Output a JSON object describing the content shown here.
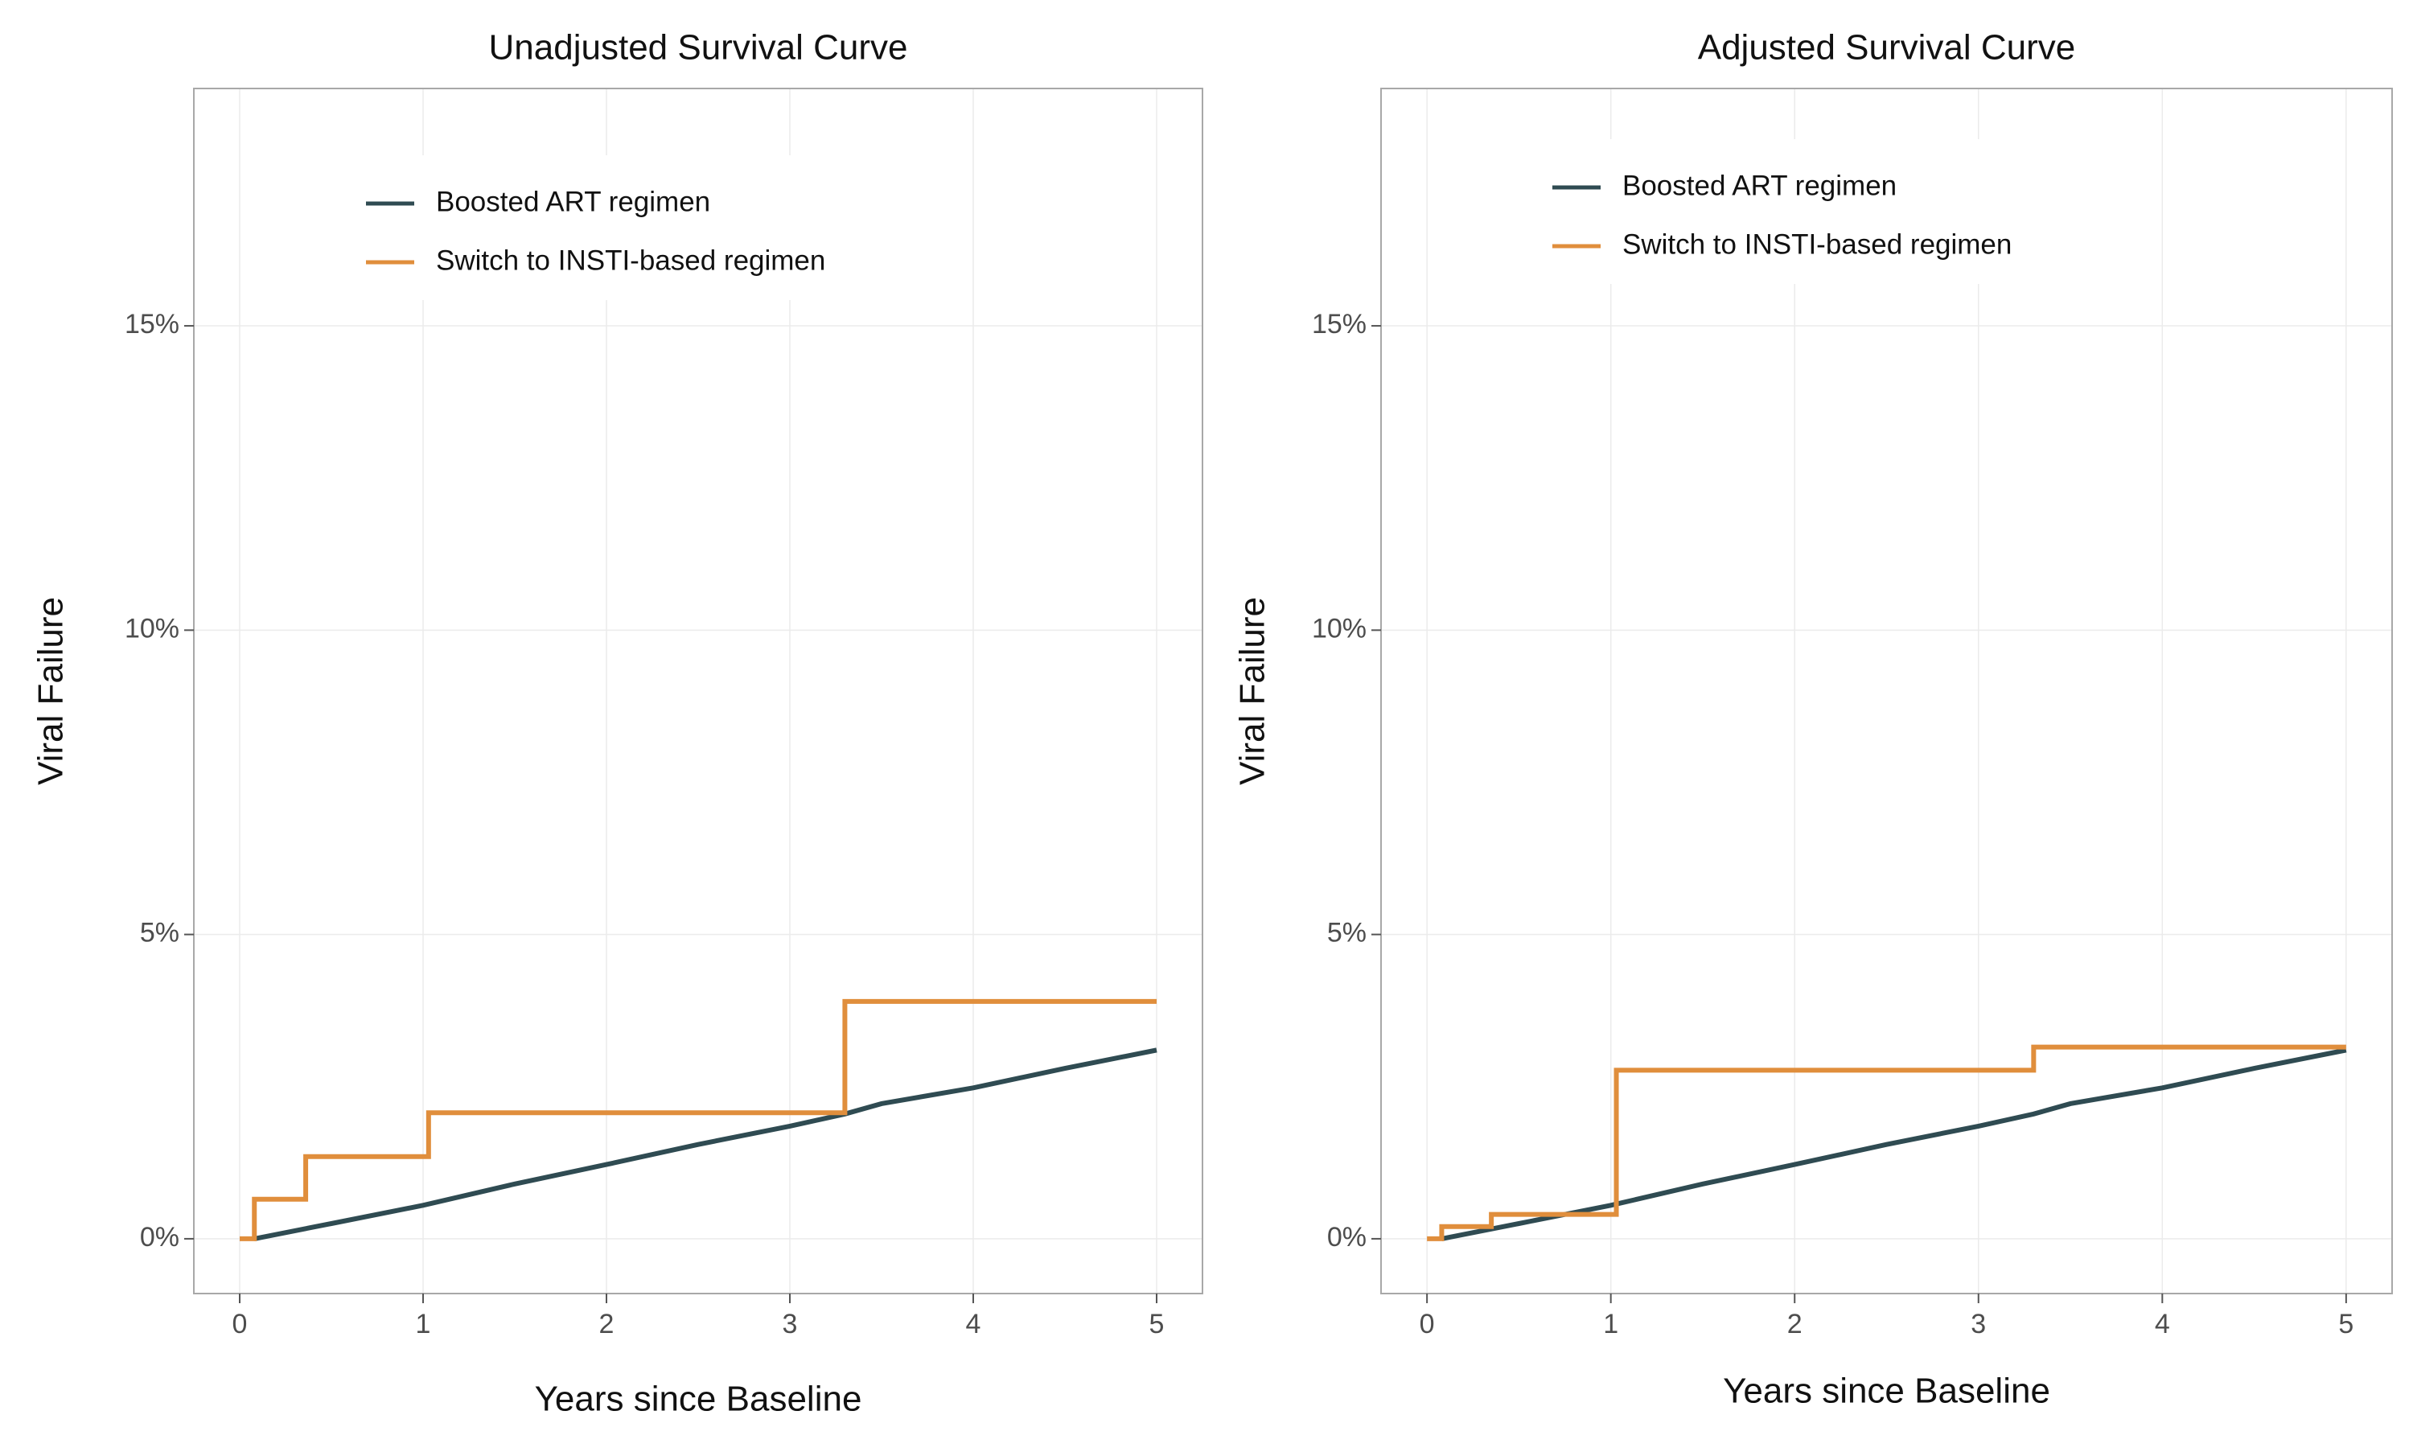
{
  "colors": {
    "boosted": "#2f4b52",
    "switch": "#e08e3c"
  },
  "chart_data": [
    {
      "type": "line",
      "step": true,
      "title": "Unadjusted Survival Curve",
      "xlabel": "Years since Baseline",
      "ylabel": "Viral Failure",
      "xlim": [
        -0.25,
        5.25
      ],
      "ylim": [
        -0.9,
        18.9
      ],
      "x_ticks": [
        0,
        1,
        2,
        3,
        4,
        5
      ],
      "y_ticks": [
        0,
        5,
        10,
        15
      ],
      "y_tick_labels": [
        "0%",
        "5%",
        "10%",
        "15%"
      ],
      "grid": true,
      "legend_position": "top-left inside",
      "series": [
        {
          "name": "Boosted ART regimen",
          "color_key": "boosted",
          "x": [
            0.08,
            0.5,
            1.0,
            1.5,
            2.0,
            2.5,
            3.0,
            3.3,
            3.5,
            4.0,
            4.5,
            5.0
          ],
          "y": [
            0.0,
            0.25,
            0.55,
            0.9,
            1.22,
            1.55,
            1.85,
            2.05,
            2.22,
            2.48,
            2.8,
            3.1
          ]
        },
        {
          "name": "Switch to INSTI-based regimen",
          "color_key": "switch",
          "x": [
            0.0,
            0.08,
            0.36,
            1.03,
            3.3,
            5.0
          ],
          "y": [
            0.0,
            0.65,
            1.35,
            2.07,
            3.9,
            3.9
          ]
        }
      ]
    },
    {
      "type": "line",
      "step": true,
      "title": "Adjusted Survival Curve",
      "xlabel": "Years since Baseline",
      "ylabel": "Viral Failure",
      "xlim": [
        -0.25,
        5.25
      ],
      "ylim": [
        -0.9,
        18.9
      ],
      "x_ticks": [
        0,
        1,
        2,
        3,
        4,
        5
      ],
      "y_ticks": [
        0,
        5,
        10,
        15
      ],
      "y_tick_labels": [
        "0%",
        "5%",
        "10%",
        "15%"
      ],
      "grid": true,
      "legend_position": "top-left inside",
      "series": [
        {
          "name": "Boosted ART regimen",
          "color_key": "boosted",
          "x": [
            0.08,
            0.5,
            1.0,
            1.5,
            2.0,
            2.5,
            3.0,
            3.3,
            3.5,
            4.0,
            4.5,
            5.0
          ],
          "y": [
            0.0,
            0.25,
            0.55,
            0.9,
            1.22,
            1.55,
            1.85,
            2.05,
            2.22,
            2.48,
            2.8,
            3.1
          ]
        },
        {
          "name": "Switch to INSTI-based regimen",
          "color_key": "switch",
          "x": [
            0.0,
            0.08,
            0.35,
            1.03,
            3.3,
            5.0
          ],
          "y": [
            0.0,
            0.2,
            0.4,
            2.77,
            3.15,
            3.15
          ]
        }
      ]
    }
  ]
}
